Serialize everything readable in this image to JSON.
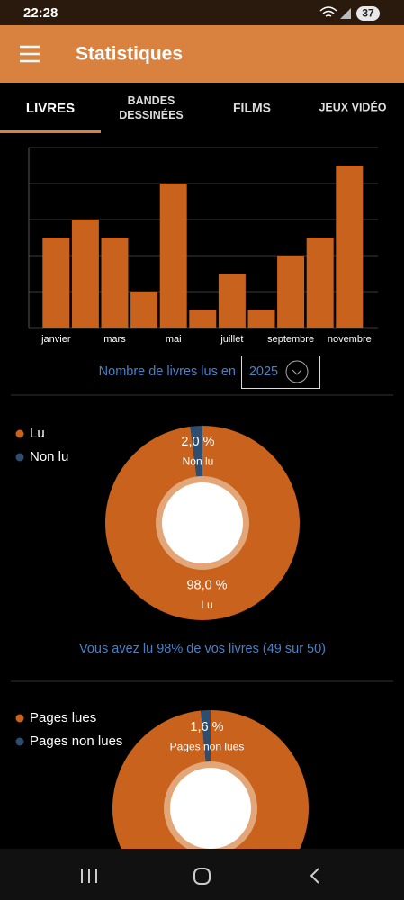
{
  "status_bar": {
    "time": "22:28",
    "battery": 37
  },
  "app_bar": {
    "title": "Statistiques"
  },
  "tabs": [
    "LIVRES",
    "BANDES DESSINÉES",
    "FILMS",
    "JEUX VIDÉO"
  ],
  "year_selector": {
    "label": "Nombre de livres lus en",
    "year": "2025"
  },
  "summary": "Vous avez lu 98% de vos livres (49 sur 50)",
  "chart_data": [
    {
      "type": "bar",
      "categories": [
        "janvier",
        null,
        "mars",
        null,
        "mai",
        null,
        "juillet",
        null,
        "septembre",
        null,
        "novembre"
      ],
      "values": [
        5,
        6,
        5,
        2,
        8,
        1,
        3,
        1,
        4,
        5,
        9
      ],
      "color": "#c8621c",
      "ylim": [
        0,
        10
      ],
      "yticks": [
        0,
        2,
        4,
        6,
        8,
        10
      ],
      "grid": true
    },
    {
      "type": "pie",
      "categories": [
        "Lu",
        "Non lu"
      ],
      "values": [
        98.0,
        2.0
      ],
      "value_labels": [
        "98,0 %",
        "2,0 %"
      ],
      "colors": [
        "#c8621c",
        "#2f4d6e"
      ],
      "legend": "top-left"
    },
    {
      "type": "pie",
      "categories": [
        "Pages lues",
        "Pages non lues"
      ],
      "values": [
        98.4,
        1.6
      ],
      "value_labels": [
        null,
        "1,6 %"
      ],
      "colors": [
        "#c8621c",
        "#2f4d6e"
      ],
      "legend": "top-left"
    }
  ]
}
